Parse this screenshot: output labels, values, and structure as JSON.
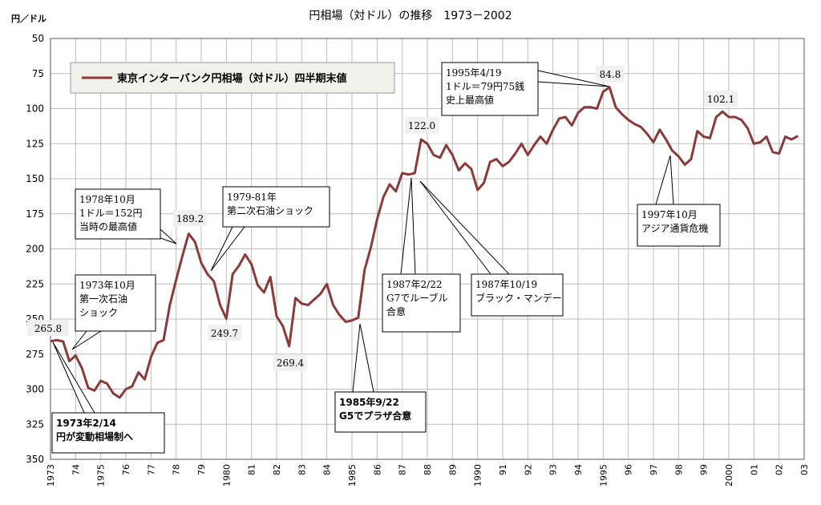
{
  "chart_data": {
    "type": "line",
    "title": "円相場（対ドル）の推移　1973－2002",
    "y_unit_label": "円／ドル",
    "ylim": [
      50,
      350
    ],
    "y_inverted": true,
    "y_ticks": [
      "50",
      "75",
      "100",
      "125",
      "150",
      "175",
      "200",
      "225",
      "250",
      "275",
      "300",
      "325",
      "350"
    ],
    "x_tick_labels": [
      "1973",
      "74",
      "1975",
      "76",
      "77",
      "78",
      "79",
      "1980",
      "81",
      "82",
      "83",
      "84",
      "1985",
      "86",
      "87",
      "88",
      "89",
      "1990",
      "91",
      "92",
      "93",
      "94",
      "1995",
      "96",
      "97",
      "98",
      "99",
      "2000",
      "01",
      "02",
      "03"
    ],
    "grid": true,
    "legend_position": "top-left",
    "series": [
      {
        "name": "東京インターバンク円相場（対ドル）四半期末値",
        "color": "#8b3a3a",
        "x": [
          1973.0,
          1973.25,
          1973.5,
          1973.75,
          1974.0,
          1974.25,
          1974.5,
          1974.75,
          1975.0,
          1975.25,
          1975.5,
          1975.75,
          1976.0,
          1976.25,
          1976.5,
          1976.75,
          1977.0,
          1977.25,
          1977.5,
          1977.75,
          1978.0,
          1978.25,
          1978.5,
          1978.75,
          1979.0,
          1979.25,
          1979.5,
          1979.75,
          1980.0,
          1980.25,
          1980.5,
          1980.75,
          1981.0,
          1981.25,
          1981.5,
          1981.75,
          1982.0,
          1982.25,
          1982.5,
          1982.75,
          1983.0,
          1983.25,
          1983.5,
          1983.75,
          1984.0,
          1984.25,
          1984.5,
          1984.75,
          1985.0,
          1985.25,
          1985.5,
          1985.75,
          1986.0,
          1986.25,
          1986.5,
          1986.75,
          1987.0,
          1987.25,
          1987.5,
          1987.75,
          1988.0,
          1988.25,
          1988.5,
          1988.75,
          1989.0,
          1989.25,
          1989.5,
          1989.75,
          1990.0,
          1990.25,
          1990.5,
          1990.75,
          1991.0,
          1991.25,
          1991.5,
          1991.75,
          1992.0,
          1992.25,
          1992.5,
          1992.75,
          1993.0,
          1993.25,
          1993.5,
          1993.75,
          1994.0,
          1994.25,
          1994.5,
          1994.75,
          1995.0,
          1995.25,
          1995.5,
          1995.75,
          1996.0,
          1996.25,
          1996.5,
          1996.75,
          1997.0,
          1997.25,
          1997.5,
          1997.75,
          1998.0,
          1998.25,
          1998.5,
          1998.75,
          1999.0,
          1999.25,
          1999.5,
          1999.75,
          2000.0,
          2000.25,
          2000.5,
          2000.75,
          2001.0,
          2001.25,
          2001.5,
          2001.75,
          2002.0,
          2002.25,
          2002.5,
          2002.75
        ],
        "values": [
          265.8,
          265.0,
          266.0,
          280.0,
          276.0,
          285.0,
          299.0,
          301.0,
          294.0,
          296.0,
          303.0,
          306.0,
          300.0,
          298.0,
          288.0,
          293.0,
          277.0,
          267.0,
          265.0,
          240.0,
          222.0,
          205.0,
          189.2,
          195.0,
          210.0,
          218.0,
          223.0,
          240.0,
          249.7,
          218.0,
          212.0,
          204.0,
          211.0,
          226.0,
          231.0,
          220.0,
          248.0,
          255.0,
          269.4,
          235.0,
          239.0,
          240.0,
          236.0,
          232.0,
          225.0,
          240.0,
          247.0,
          252.0,
          251.0,
          249.0,
          215.0,
          199.0,
          179.0,
          163.0,
          154.0,
          159.0,
          146.0,
          147.0,
          146.0,
          122.0,
          125.0,
          133.0,
          135.0,
          126.0,
          133.0,
          144.0,
          139.0,
          143.0,
          158.0,
          153.0,
          138.0,
          136.0,
          141.0,
          138.0,
          132.0,
          125.0,
          133.0,
          126.0,
          120.0,
          125.0,
          115.0,
          107.0,
          106.0,
          112.0,
          103.0,
          99.0,
          99.0,
          100.0,
          88.0,
          84.8,
          99.0,
          104.0,
          108.0,
          111.0,
          113.0,
          118.0,
          124.0,
          115.0,
          122.0,
          130.0,
          134.0,
          140.0,
          136.0,
          116.0,
          120.0,
          121.0,
          106.0,
          102.1,
          106.0,
          106.0,
          108.0,
          114.0,
          125.0,
          124.0,
          120.0,
          131.0,
          132.0,
          120.0,
          122.0,
          119.5
        ]
      }
    ],
    "data_labels": [
      "265.8",
      "189.2",
      "249.7",
      "269.4",
      "122.0",
      "84.8",
      "102.1"
    ],
    "annotations": [
      {
        "lines": [
          "1978年10月",
          "1ドル＝152円",
          "当時の最高値"
        ]
      },
      {
        "lines": [
          "1979-81年",
          "第二次石油ショック"
        ]
      },
      {
        "lines": [
          "1973年10月",
          "第一次石油",
          "ショック"
        ]
      },
      {
        "lines": [
          "1973年2/14",
          "円が変動相場制へ"
        ]
      },
      {
        "lines": [
          "1985年9/22",
          "G5でプラザ合意"
        ]
      },
      {
        "lines": [
          "1987年2/22",
          "G7でルーブル",
          "合意"
        ]
      },
      {
        "lines": [
          "1987年10/19",
          "ブラック・マンデー"
        ]
      },
      {
        "lines": [
          "1995年4/19",
          "1ドル＝79円75銭",
          "史上最高値"
        ]
      },
      {
        "lines": [
          "1997年10月",
          "アジア通貨危機"
        ]
      }
    ]
  }
}
